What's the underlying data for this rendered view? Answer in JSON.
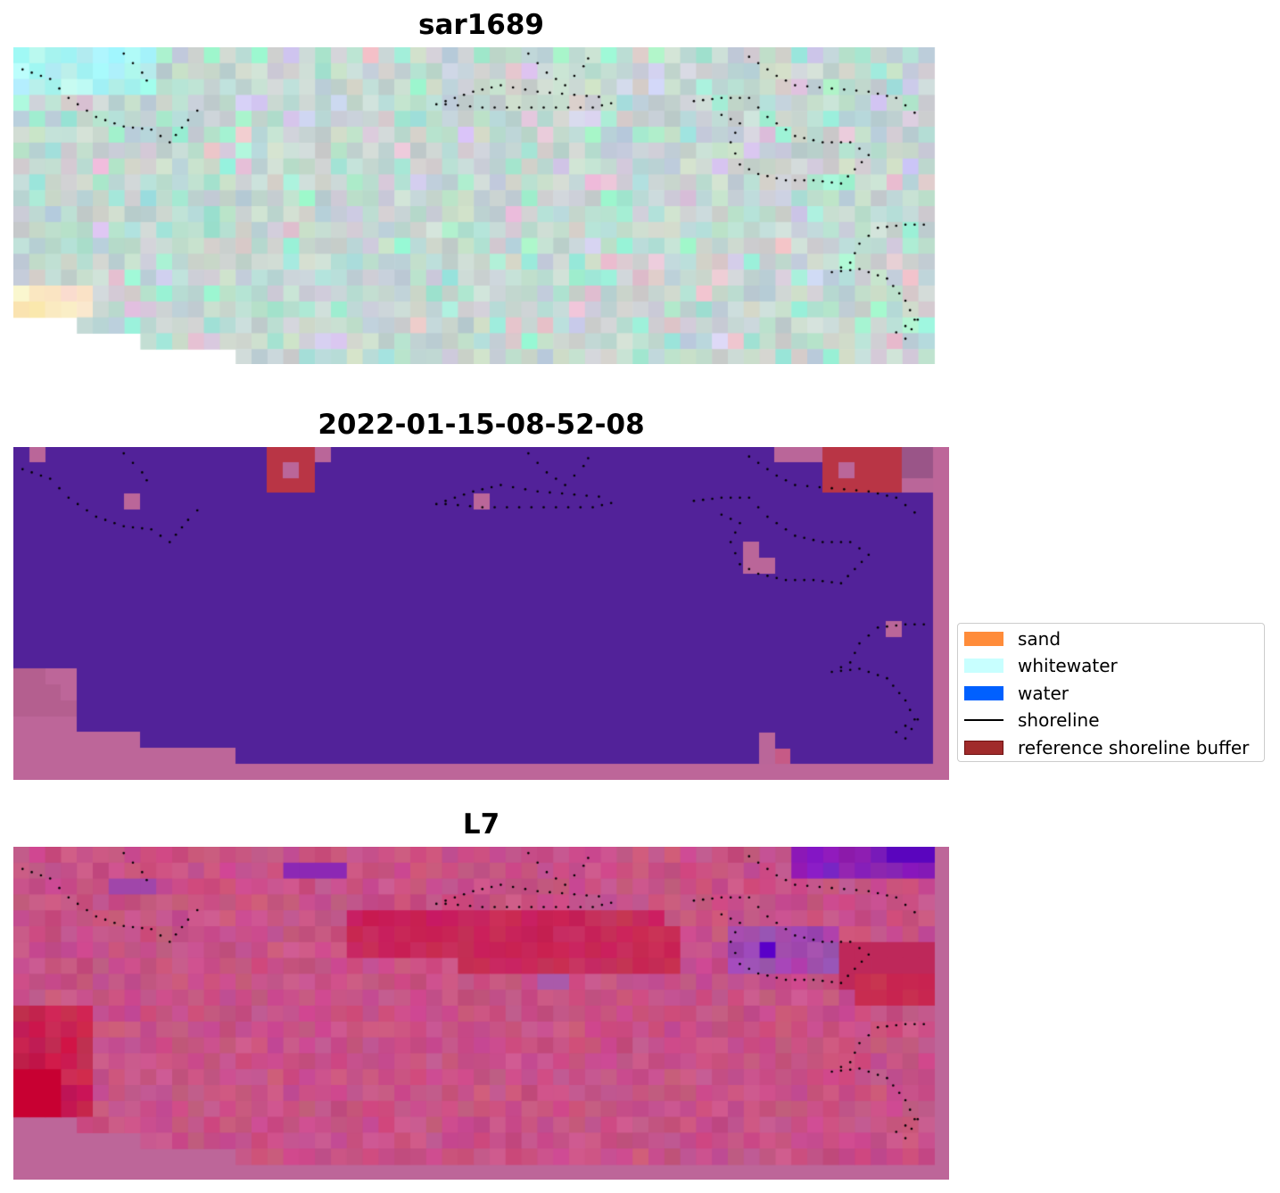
{
  "panels": [
    {
      "title": "sar1689",
      "style": "sar"
    },
    {
      "title": "2022-01-15-08-52-08",
      "style": "class"
    },
    {
      "title": "L7",
      "style": "ndwi"
    }
  ],
  "legend": {
    "items": [
      {
        "label": "sand",
        "type": "patch",
        "color": "#ff8c3a"
      },
      {
        "label": "whitewater",
        "type": "patch",
        "color": "#c8ffff"
      },
      {
        "label": "water",
        "type": "patch",
        "color": "#0060ff"
      },
      {
        "label": "shoreline",
        "type": "line",
        "color": "#000000"
      },
      {
        "label": "reference shoreline buffer",
        "type": "patch",
        "color": "#a02b2b",
        "border": "#6e1010"
      }
    ]
  },
  "colors": {
    "class_background": "#522299",
    "nodata_pink": "#bd6699",
    "buffer_red": "#b93545",
    "buffer_mauve": "#ba6699"
  },
  "shorelines": [
    [
      [
        0.01,
        0.07
      ],
      [
        0.04,
        0.1
      ],
      [
        0.06,
        0.16
      ],
      [
        0.09,
        0.22
      ],
      [
        0.12,
        0.25
      ],
      [
        0.15,
        0.26
      ],
      [
        0.17,
        0.3
      ],
      [
        0.19,
        0.23
      ],
      [
        0.21,
        0.17
      ]
    ],
    [
      [
        0.12,
        0.02
      ],
      [
        0.14,
        0.08
      ],
      [
        0.15,
        0.13
      ]
    ],
    [
      [
        0.46,
        0.18
      ],
      [
        0.5,
        0.14
      ],
      [
        0.53,
        0.12
      ],
      [
        0.57,
        0.14
      ],
      [
        0.61,
        0.15
      ],
      [
        0.65,
        0.16
      ]
    ],
    [
      [
        0.47,
        0.18
      ],
      [
        0.51,
        0.19
      ],
      [
        0.55,
        0.19
      ],
      [
        0.59,
        0.19
      ],
      [
        0.63,
        0.19
      ],
      [
        0.66,
        0.17
      ]
    ],
    [
      [
        0.56,
        0.02
      ],
      [
        0.58,
        0.08
      ],
      [
        0.6,
        0.12
      ],
      [
        0.62,
        0.06
      ],
      [
        0.63,
        0.01
      ]
    ],
    [
      [
        0.8,
        0.03
      ],
      [
        0.83,
        0.09
      ],
      [
        0.85,
        0.12
      ],
      [
        0.89,
        0.13
      ],
      [
        0.93,
        0.14
      ],
      [
        0.96,
        0.16
      ],
      [
        0.99,
        0.23
      ]
    ],
    [
      [
        0.74,
        0.17
      ],
      [
        0.77,
        0.16
      ],
      [
        0.8,
        0.16
      ],
      [
        0.82,
        0.22
      ],
      [
        0.85,
        0.28
      ],
      [
        0.88,
        0.3
      ],
      [
        0.91,
        0.3
      ],
      [
        0.93,
        0.34
      ],
      [
        0.9,
        0.43
      ],
      [
        0.87,
        0.42
      ],
      [
        0.84,
        0.42
      ],
      [
        0.81,
        0.4
      ],
      [
        0.79,
        0.37
      ],
      [
        0.78,
        0.3
      ],
      [
        0.79,
        0.24
      ],
      [
        0.76,
        0.2
      ]
    ],
    [
      [
        0.99,
        0.56
      ],
      [
        0.97,
        0.56
      ],
      [
        0.94,
        0.57
      ],
      [
        0.92,
        0.62
      ],
      [
        0.91,
        0.68
      ],
      [
        0.89,
        0.71
      ],
      [
        0.92,
        0.7
      ],
      [
        0.95,
        0.73
      ],
      [
        0.97,
        0.8
      ],
      [
        0.98,
        0.86
      ],
      [
        0.96,
        0.9
      ],
      [
        0.97,
        0.92
      ],
      [
        0.99,
        0.83
      ]
    ]
  ]
}
